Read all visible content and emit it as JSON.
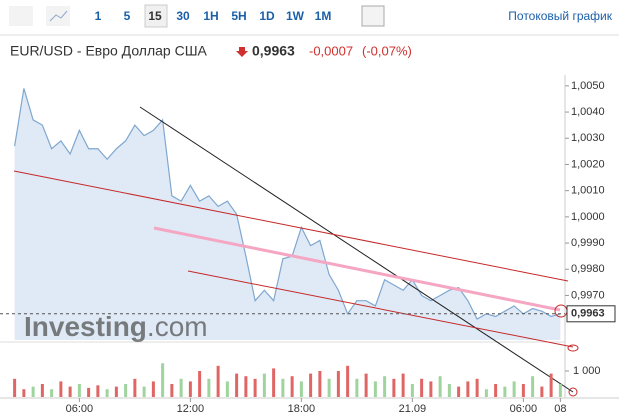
{
  "toolbar": {
    "intervals": [
      "1",
      "5",
      "15",
      "30",
      "1H",
      "5H",
      "1D",
      "1W",
      "1M"
    ],
    "selected": 2,
    "streaming": "Потоковый график"
  },
  "header": {
    "pair": "EUR/USD - Евро Доллар США",
    "price": "0,9963",
    "change": "-0,0007",
    "change_pct": "(-0,07%)"
  },
  "watermark": {
    "brand": "Investing",
    "suffix": ".com"
  },
  "chart_data": {
    "type": "area",
    "categories": [
      null,
      null,
      null,
      null,
      null,
      null,
      null,
      "06:00",
      null,
      null,
      null,
      null,
      null,
      null,
      null,
      null,
      null,
      null,
      null,
      "12:00",
      null,
      null,
      null,
      null,
      null,
      null,
      null,
      null,
      null,
      null,
      null,
      "18:00",
      null,
      null,
      null,
      null,
      null,
      null,
      null,
      null,
      null,
      null,
      null,
      "21.09",
      null,
      null,
      null,
      null,
      null,
      null,
      null,
      null,
      null,
      null,
      null,
      "06:00",
      null,
      null,
      null,
      "08"
    ],
    "values": [
      1.0027,
      1.0049,
      1.0037,
      1.0035,
      1.0026,
      1.0029,
      1.0024,
      1.0033,
      1.0026,
      1.0026,
      1.0022,
      1.0026,
      1.0029,
      1.0035,
      1.0031,
      1.0033,
      1.0037,
      1.0008,
      1.0006,
      1.0012,
      1.0006,
      1.0008,
      1.0004,
      1.0006,
      1.0001,
      0.9985,
      0.9968,
      0.9972,
      0.9968,
      0.9984,
      0.9985,
      0.9996,
      0.9989,
      0.9991,
      0.9978,
      0.9972,
      0.9963,
      0.9968,
      0.9968,
      0.9966,
      0.9976,
      0.9974,
      0.9972,
      0.9976,
      0.997,
      0.9968,
      0.997,
      0.9972,
      0.9973,
      0.9968,
      0.9961,
      0.9963,
      0.9962,
      0.9964,
      0.9966,
      0.9963,
      0.9965,
      0.9964,
      0.9962,
      0.9963
    ],
    "color": "#7fa7cf",
    "fill": "#dfeaf6",
    "ylim": [
      0.9953,
      1.0053
    ],
    "yticks": [
      {
        "value": 1.005,
        "label": "1,0050"
      },
      {
        "value": 1.004,
        "label": "1,0040"
      },
      {
        "value": 1.003,
        "label": "1,0030"
      },
      {
        "value": 1.002,
        "label": "1,0020"
      },
      {
        "value": 1.001,
        "label": "1,0010"
      },
      {
        "value": 1.0,
        "label": "1,0000"
      },
      {
        "value": 0.999,
        "label": "0,9990"
      },
      {
        "value": 0.998,
        "label": "0,9980"
      },
      {
        "value": 0.997,
        "label": "0,9970"
      }
    ],
    "last": {
      "value": 0.9963,
      "label": "0,9963"
    },
    "grid": false,
    "volume": {
      "values": [
        700,
        300,
        400,
        500,
        300,
        600,
        400,
        500,
        350,
        450,
        300,
        400,
        500,
        700,
        400,
        600,
        1300,
        500,
        700,
        600,
        1000,
        700,
        1200,
        600,
        900,
        800,
        700,
        900,
        1100,
        700,
        800,
        600,
        900,
        1000,
        700,
        1000,
        1200,
        700,
        900,
        600,
        800,
        700,
        900,
        500,
        700,
        600,
        800,
        500,
        400,
        600,
        700,
        300,
        500,
        400,
        600,
        500,
        800,
        400,
        900,
        500
      ],
      "colors": [
        "#e06666",
        "#e06666",
        "#9fd49f",
        "#e06666",
        "#9fd49f",
        "#e06666",
        "#e06666",
        "#9fd49f",
        "#e06666",
        "#e06666",
        "#9fd49f",
        "#e06666",
        "#9fd49f",
        "#e06666",
        "#9fd49f",
        "#e06666",
        "#9fd49f",
        "#e06666",
        "#9fd49f",
        "#e06666",
        "#e06666",
        "#9fd49f",
        "#e06666",
        "#9fd49f",
        "#e06666",
        "#e06666",
        "#e06666",
        "#9fd49f",
        "#e06666",
        "#9fd49f",
        "#e06666",
        "#9fd49f",
        "#e06666",
        "#e06666",
        "#9fd49f",
        "#e06666",
        "#e06666",
        "#9fd49f",
        "#e06666",
        "#9fd49f",
        "#9fd49f",
        "#e06666",
        "#e06666",
        "#9fd49f",
        "#e06666",
        "#e06666",
        "#9fd49f",
        "#9fd49f",
        "#e06666",
        "#e06666",
        "#e06666",
        "#9fd49f",
        "#e06666",
        "#9fd49f",
        "#9fd49f",
        "#e06666",
        "#9fd49f",
        "#e06666",
        "#e06666",
        "#9fd49f"
      ],
      "ylim": [
        0,
        2000
      ],
      "yticks": [
        {
          "value": 1000,
          "label": "1 000"
        }
      ]
    }
  }
}
